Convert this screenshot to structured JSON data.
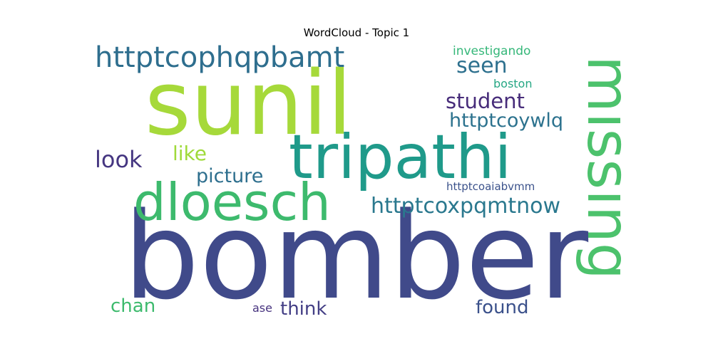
{
  "chart_data": {
    "type": "wordcloud",
    "title": "WordCloud - Topic 1",
    "words": [
      {
        "text": "bomber",
        "color": "#404a8a"
      },
      {
        "text": "sunil",
        "color": "#a6d93a"
      },
      {
        "text": "tripathi",
        "color": "#1f9a8a"
      },
      {
        "text": "missing",
        "color": "#4cc26c"
      },
      {
        "text": "dloesch",
        "color": "#3dba6d"
      },
      {
        "text": "httptcophqpbamt",
        "color": "#2e6e8e"
      },
      {
        "text": "httptcoxpqmtnow",
        "color": "#2a788e"
      },
      {
        "text": "seen",
        "color": "#2d708e"
      },
      {
        "text": "student",
        "color": "#472c7a"
      },
      {
        "text": "httptcoywlq",
        "color": "#2c728e"
      },
      {
        "text": "look",
        "color": "#453681"
      },
      {
        "text": "picture",
        "color": "#2e6f8e"
      },
      {
        "text": "like",
        "color": "#9fda3a"
      },
      {
        "text": "investigando",
        "color": "#35b779"
      },
      {
        "text": "boston",
        "color": "#26a784"
      },
      {
        "text": "httptcoaiabvmm",
        "color": "#3b528b"
      },
      {
        "text": "chan",
        "color": "#3dba6d"
      },
      {
        "text": "think",
        "color": "#433e85"
      },
      {
        "text": "found",
        "color": "#3b518b"
      },
      {
        "text": "ase",
        "color": "#46327e"
      }
    ]
  }
}
